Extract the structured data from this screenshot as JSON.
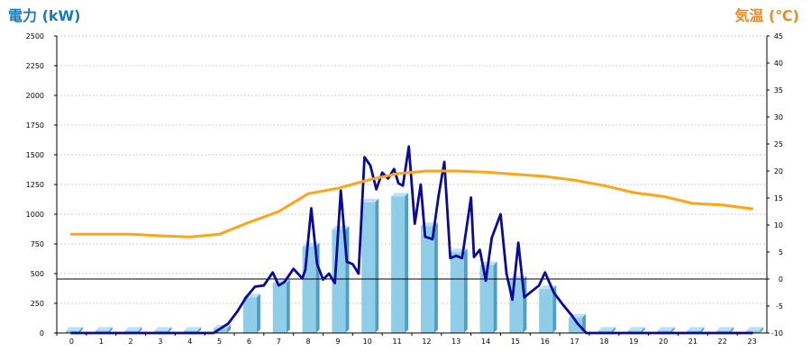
{
  "chart_data": {
    "type": "bar",
    "left_title": "電力 (kW)",
    "right_title": "気温 (℃)",
    "categories": [
      "0",
      "1",
      "2",
      "3",
      "4",
      "5",
      "6",
      "7",
      "8",
      "9",
      "10",
      "11",
      "12",
      "13",
      "14",
      "15",
      "16",
      "17",
      "18",
      "19",
      "20",
      "21",
      "22",
      "23"
    ],
    "y_left": {
      "min": 0,
      "max": 2500,
      "ticks": [
        "0",
        "250",
        "500",
        "750",
        "1000",
        "1250",
        "1500",
        "1750",
        "2000",
        "2250",
        "2500"
      ]
    },
    "y_right": {
      "min": -10,
      "max": 45,
      "ticks": [
        "-10",
        "-5",
        "0",
        "5",
        "10",
        "15",
        "20",
        "25",
        "30",
        "35",
        "40",
        "45"
      ]
    },
    "grid": true,
    "series": [
      {
        "kind": "bar",
        "axis": "left",
        "color": "#8fcde8",
        "values": [
          20,
          20,
          20,
          20,
          20,
          40,
          300,
          420,
          730,
          870,
          1100,
          1150,
          900,
          680,
          570,
          450,
          370,
          130,
          20,
          20,
          20,
          20,
          20,
          20
        ]
      },
      {
        "kind": "line",
        "axis": "left",
        "color": "#0a0a96",
        "x": [
          0,
          1,
          2,
          3,
          4,
          4.8,
          5.3,
          5.6,
          5.9,
          6.2,
          6.5,
          6.8,
          7.0,
          7.2,
          7.5,
          7.8,
          7.9,
          8.1,
          8.3,
          8.5,
          8.7,
          8.9,
          9.1,
          9.3,
          9.5,
          9.7,
          9.9,
          10.1,
          10.3,
          10.5,
          10.7,
          10.9,
          11.05,
          11.2,
          11.4,
          11.6,
          11.8,
          11.95,
          12.2,
          12.4,
          12.6,
          12.8,
          13.0,
          13.2,
          13.5,
          13.6,
          13.8,
          14.0,
          14.2,
          14.5,
          14.7,
          14.9,
          15.1,
          15.3,
          15.5,
          15.8,
          16.0,
          16.3,
          16.6,
          16.9,
          17.1,
          17.4,
          18,
          19,
          20,
          21,
          22,
          23
        ],
        "values": [
          0,
          0,
          0,
          0,
          0,
          0,
          80,
          180,
          300,
          390,
          400,
          510,
          400,
          430,
          540,
          460,
          530,
          1050,
          580,
          450,
          500,
          420,
          1200,
          600,
          580,
          500,
          1480,
          1410,
          1210,
          1350,
          1300,
          1380,
          1260,
          1240,
          1570,
          920,
          1250,
          810,
          790,
          1150,
          1440,
          630,
          650,
          630,
          1140,
          640,
          700,
          440,
          800,
          1000,
          500,
          280,
          760,
          300,
          340,
          400,
          510,
          340,
          240,
          150,
          80,
          0,
          0,
          0,
          0,
          0,
          0,
          0
        ]
      },
      {
        "kind": "line",
        "axis": "right",
        "color": "#ffa515",
        "values": [
          8.3,
          8.3,
          8.3,
          8.0,
          7.8,
          8.3,
          10.5,
          12.5,
          15.8,
          16.8,
          18.3,
          19.5,
          20.0,
          20.0,
          19.8,
          19.4,
          19.0,
          18.3,
          17.3,
          16.0,
          15.3,
          14.0,
          13.7,
          13.0
        ]
      }
    ],
    "reference_line": {
      "axis": "right",
      "value": 0,
      "color": "#000000"
    }
  }
}
